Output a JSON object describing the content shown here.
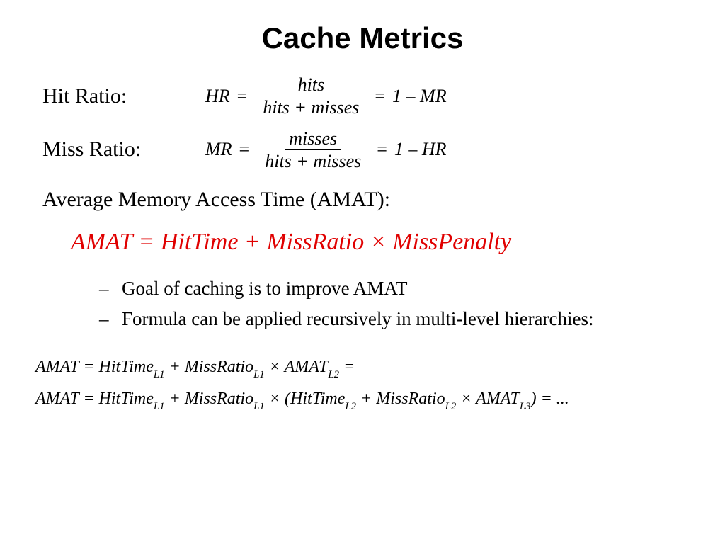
{
  "title": "Cache Metrics",
  "hitRatio": {
    "label": "Hit Ratio:",
    "lhs": "HR",
    "num": "hits",
    "den": "hits + misses",
    "rhs": "1 – MR"
  },
  "missRatio": {
    "label": "Miss Ratio:",
    "lhs": "MR",
    "num": "misses",
    "den": "hits + misses",
    "rhs": "1 – HR"
  },
  "amat": {
    "heading": "Average Memory Access Time (AMAT):",
    "mainFormula": "AMAT = HitTime + MissRatio × MissPenalty",
    "bullets": [
      "Goal of caching is to improve AMAT",
      "Formula can be applied recursively in multi-level hierarchies:"
    ],
    "recursive": {
      "line1": {
        "preL1a": "AMAT = HitTime",
        "subL1a": "L1",
        "mid1": " + MissRatio",
        "subL1b": "L1",
        "mid2": " × AMAT",
        "subL2": "L2",
        "tail": " ="
      },
      "line2": {
        "preL1a": "AMAT = HitTime",
        "subL1a": "L1",
        "mid1": " + MissRatio",
        "subL1b": "L1",
        "mid2": " × (HitTime",
        "subL2a": "L2",
        "mid3": " + MissRatio",
        "subL2b": "L2",
        "mid4": " × AMAT",
        "subL3": "L3",
        "tail": ") = ..."
      }
    }
  },
  "colors": {
    "text": "#000000",
    "accent": "#e00000",
    "background": "#ffffff"
  },
  "typography": {
    "titleFontSize": 42,
    "labelFontSize": 30,
    "formulaFontSize": 26,
    "amatFormulaFontSize": 34,
    "bulletFontSize": 27,
    "recursiveFontSize": 24
  }
}
